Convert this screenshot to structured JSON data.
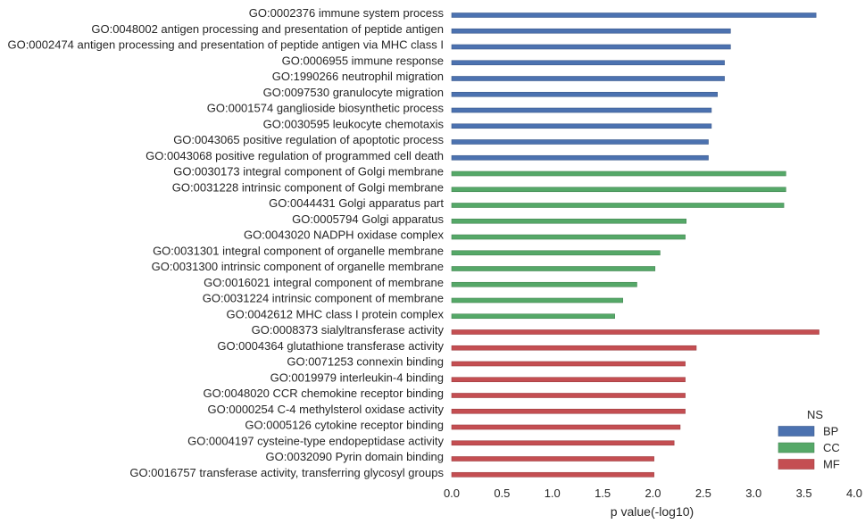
{
  "chart_data": {
    "type": "bar",
    "orientation": "horizontal",
    "title": "",
    "xlabel": "p value(-log10)",
    "ylabel": "",
    "xlim": [
      0,
      4.0
    ],
    "x_ticks": [
      "0.0",
      "0.5",
      "1.0",
      "1.5",
      "2.0",
      "2.5",
      "3.0",
      "3.5",
      "4.0"
    ],
    "grid": false,
    "legend": {
      "title": "NS",
      "placement": "bottom-right",
      "entries": [
        {
          "name": "BP",
          "color": "#4c72b0"
        },
        {
          "name": "CC",
          "color": "#55a868"
        },
        {
          "name": "MF",
          "color": "#c44e52"
        }
      ]
    },
    "series": [
      {
        "name": "BP",
        "color": "#4c72b0",
        "categories": [
          "GO:0002376 immune system process",
          "GO:0048002 antigen processing and presentation of peptide antigen",
          "GO:0002474 antigen processing and presentation of peptide antigen via MHC class I",
          "GO:0006955 immune response",
          "GO:1990266 neutrophil migration",
          "GO:0097530 granulocyte migration",
          "GO:0001574 ganglioside biosynthetic process",
          "GO:0030595 leukocyte chemotaxis",
          "GO:0043065 positive regulation of apoptotic process",
          "GO:0043068 positive regulation of programmed cell death"
        ],
        "values": [
          3.62,
          2.77,
          2.77,
          2.71,
          2.71,
          2.64,
          2.58,
          2.58,
          2.55,
          2.55
        ]
      },
      {
        "name": "CC",
        "color": "#55a868",
        "categories": [
          "GO:0030173 integral component of Golgi membrane",
          "GO:0031228 intrinsic component of Golgi membrane",
          "GO:0044431 Golgi apparatus part",
          "GO:0005794 Golgi apparatus",
          "GO:0043020 NADPH oxidase complex",
          "GO:0031301 integral component of organelle membrane",
          "GO:0031300 intrinsic component of organelle membrane",
          "GO:0016021 integral component of membrane",
          "GO:0031224 intrinsic component of membrane",
          "GO:0042612 MHC class I protein complex"
        ],
        "values": [
          3.32,
          3.32,
          3.3,
          2.33,
          2.32,
          2.07,
          2.02,
          1.84,
          1.7,
          1.62
        ]
      },
      {
        "name": "MF",
        "color": "#c44e52",
        "categories": [
          "GO:0008373 sialyltransferase activity",
          "GO:0004364 glutathione transferase activity",
          "GO:0071253 connexin binding",
          "GO:0019979 interleukin-4 binding",
          "GO:0048020 CCR chemokine receptor binding",
          "GO:0000254 C-4 methylsterol oxidase activity",
          "GO:0005126 cytokine receptor binding",
          "GO:0004197 cysteine-type endopeptidase activity",
          "GO:0032090 Pyrin domain binding",
          "GO:0016757 transferase activity, transferring glycosyl groups"
        ],
        "values": [
          3.65,
          2.43,
          2.32,
          2.32,
          2.32,
          2.32,
          2.27,
          2.21,
          2.01,
          2.01
        ]
      }
    ]
  }
}
